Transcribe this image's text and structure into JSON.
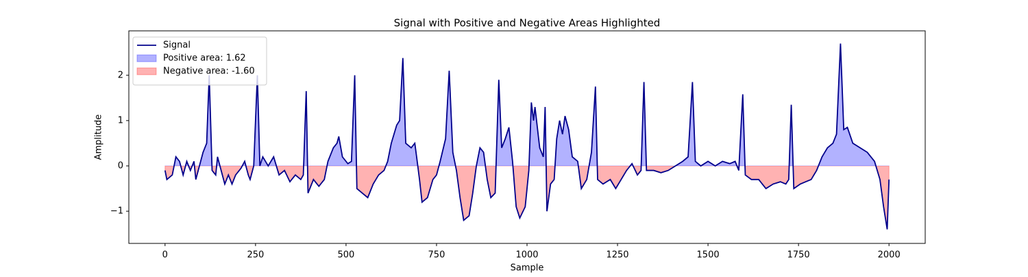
{
  "chart_data": {
    "type": "line",
    "title": "Signal with Positive and Negative Areas Highlighted",
    "x_label": "Sample",
    "y_label": "Amplitude",
    "x": [
      0,
      5,
      20,
      30,
      40,
      50,
      60,
      70,
      80,
      85,
      95,
      105,
      115,
      122,
      130,
      140,
      145,
      155,
      165,
      175,
      185,
      195,
      210,
      220,
      230,
      235,
      245,
      255,
      262,
      270,
      285,
      300,
      315,
      330,
      345,
      360,
      375,
      382,
      390,
      395,
      410,
      425,
      440,
      450,
      465,
      475,
      480,
      490,
      505,
      515,
      524,
      530,
      545,
      560,
      575,
      590,
      605,
      615,
      625,
      640,
      648,
      657,
      665,
      680,
      690,
      695,
      703,
      710,
      725,
      740,
      750,
      760,
      775,
      785,
      795,
      805,
      815,
      825,
      840,
      850,
      860,
      870,
      880,
      890,
      900,
      912,
      922,
      930,
      940,
      950,
      960,
      970,
      980,
      995,
      1005,
      1012,
      1018,
      1022,
      1035,
      1045,
      1050,
      1055,
      1065,
      1075,
      1082,
      1090,
      1098,
      1105,
      1115,
      1125,
      1140,
      1150,
      1165,
      1178,
      1189,
      1195,
      1210,
      1230,
      1245,
      1260,
      1275,
      1290,
      1305,
      1315,
      1323,
      1330,
      1350,
      1370,
      1390,
      1410,
      1430,
      1445,
      1457,
      1465,
      1480,
      1500,
      1520,
      1540,
      1560,
      1575,
      1585,
      1596,
      1603,
      1620,
      1640,
      1660,
      1680,
      1700,
      1715,
      1723,
      1730,
      1737,
      1755,
      1770,
      1785,
      1800,
      1815,
      1830,
      1845,
      1855,
      1866,
      1875,
      1885,
      1900,
      1920,
      1940,
      1960,
      1975,
      1985,
      1995,
      2000
    ],
    "series": [
      {
        "name": "Signal",
        "color": "#00008b",
        "values": [
          -0.1,
          -0.3,
          -0.2,
          0.2,
          0.1,
          -0.2,
          0.1,
          -0.1,
          0.1,
          -0.3,
          0.0,
          0.3,
          0.5,
          2.0,
          -0.1,
          -0.2,
          0.2,
          -0.1,
          -0.4,
          -0.2,
          -0.4,
          -0.2,
          -0.05,
          0.1,
          -0.2,
          -0.3,
          0.0,
          2.0,
          0.0,
          0.2,
          0.0,
          0.2,
          -0.2,
          -0.1,
          -0.35,
          -0.2,
          -0.3,
          -0.2,
          1.65,
          -0.6,
          -0.3,
          -0.45,
          -0.3,
          0.1,
          0.4,
          0.5,
          0.65,
          0.2,
          0.05,
          0.1,
          2.0,
          -0.5,
          -0.6,
          -0.7,
          -0.4,
          -0.2,
          -0.1,
          0.1,
          0.5,
          0.9,
          1.0,
          2.38,
          0.5,
          0.4,
          0.5,
          0.2,
          -0.3,
          -0.8,
          -0.7,
          -0.3,
          -0.2,
          0.1,
          0.6,
          2.1,
          0.3,
          -0.1,
          -0.7,
          -1.2,
          -1.1,
          -0.6,
          0.0,
          0.4,
          0.3,
          -0.3,
          -0.7,
          -0.6,
          1.9,
          0.4,
          0.6,
          0.85,
          0.1,
          -0.9,
          -1.15,
          -0.9,
          -0.1,
          1.4,
          1.0,
          1.3,
          0.4,
          0.2,
          1.3,
          -1.0,
          -0.4,
          -0.3,
          0.6,
          1.0,
          0.7,
          1.1,
          0.8,
          0.2,
          0.1,
          -0.5,
          -0.3,
          0.3,
          1.75,
          -0.3,
          -0.4,
          -0.3,
          -0.5,
          -0.3,
          -0.1,
          0.05,
          -0.2,
          -0.1,
          1.85,
          -0.1,
          -0.1,
          -0.15,
          -0.1,
          0.0,
          0.1,
          0.2,
          1.85,
          0.1,
          0.0,
          0.1,
          0.0,
          0.1,
          0.05,
          0.1,
          -0.1,
          1.58,
          -0.2,
          -0.3,
          -0.3,
          -0.5,
          -0.4,
          -0.35,
          -0.4,
          -0.3,
          1.35,
          -0.5,
          -0.4,
          -0.35,
          -0.3,
          -0.1,
          0.2,
          0.4,
          0.5,
          0.7,
          2.7,
          0.8,
          0.85,
          0.5,
          0.4,
          0.3,
          0.1,
          -0.3,
          -0.9,
          -1.4,
          -0.3
        ]
      }
    ],
    "fills": [
      {
        "name": "Positive area: 1.62",
        "color": "#0000ff",
        "sign": "positive"
      },
      {
        "name": "Negative area: -1.60",
        "color": "#ff0000",
        "sign": "negative"
      }
    ],
    "xlim": [
      -100,
      2100
    ],
    "ylim": [
      -1.71,
      2.98
    ],
    "xticks": [
      0,
      250,
      500,
      750,
      1000,
      1250,
      1500,
      1750,
      2000
    ],
    "yticks": [
      {
        "value": -1,
        "label": "−1"
      },
      0,
      1,
      2
    ],
    "legend": "upper left"
  }
}
